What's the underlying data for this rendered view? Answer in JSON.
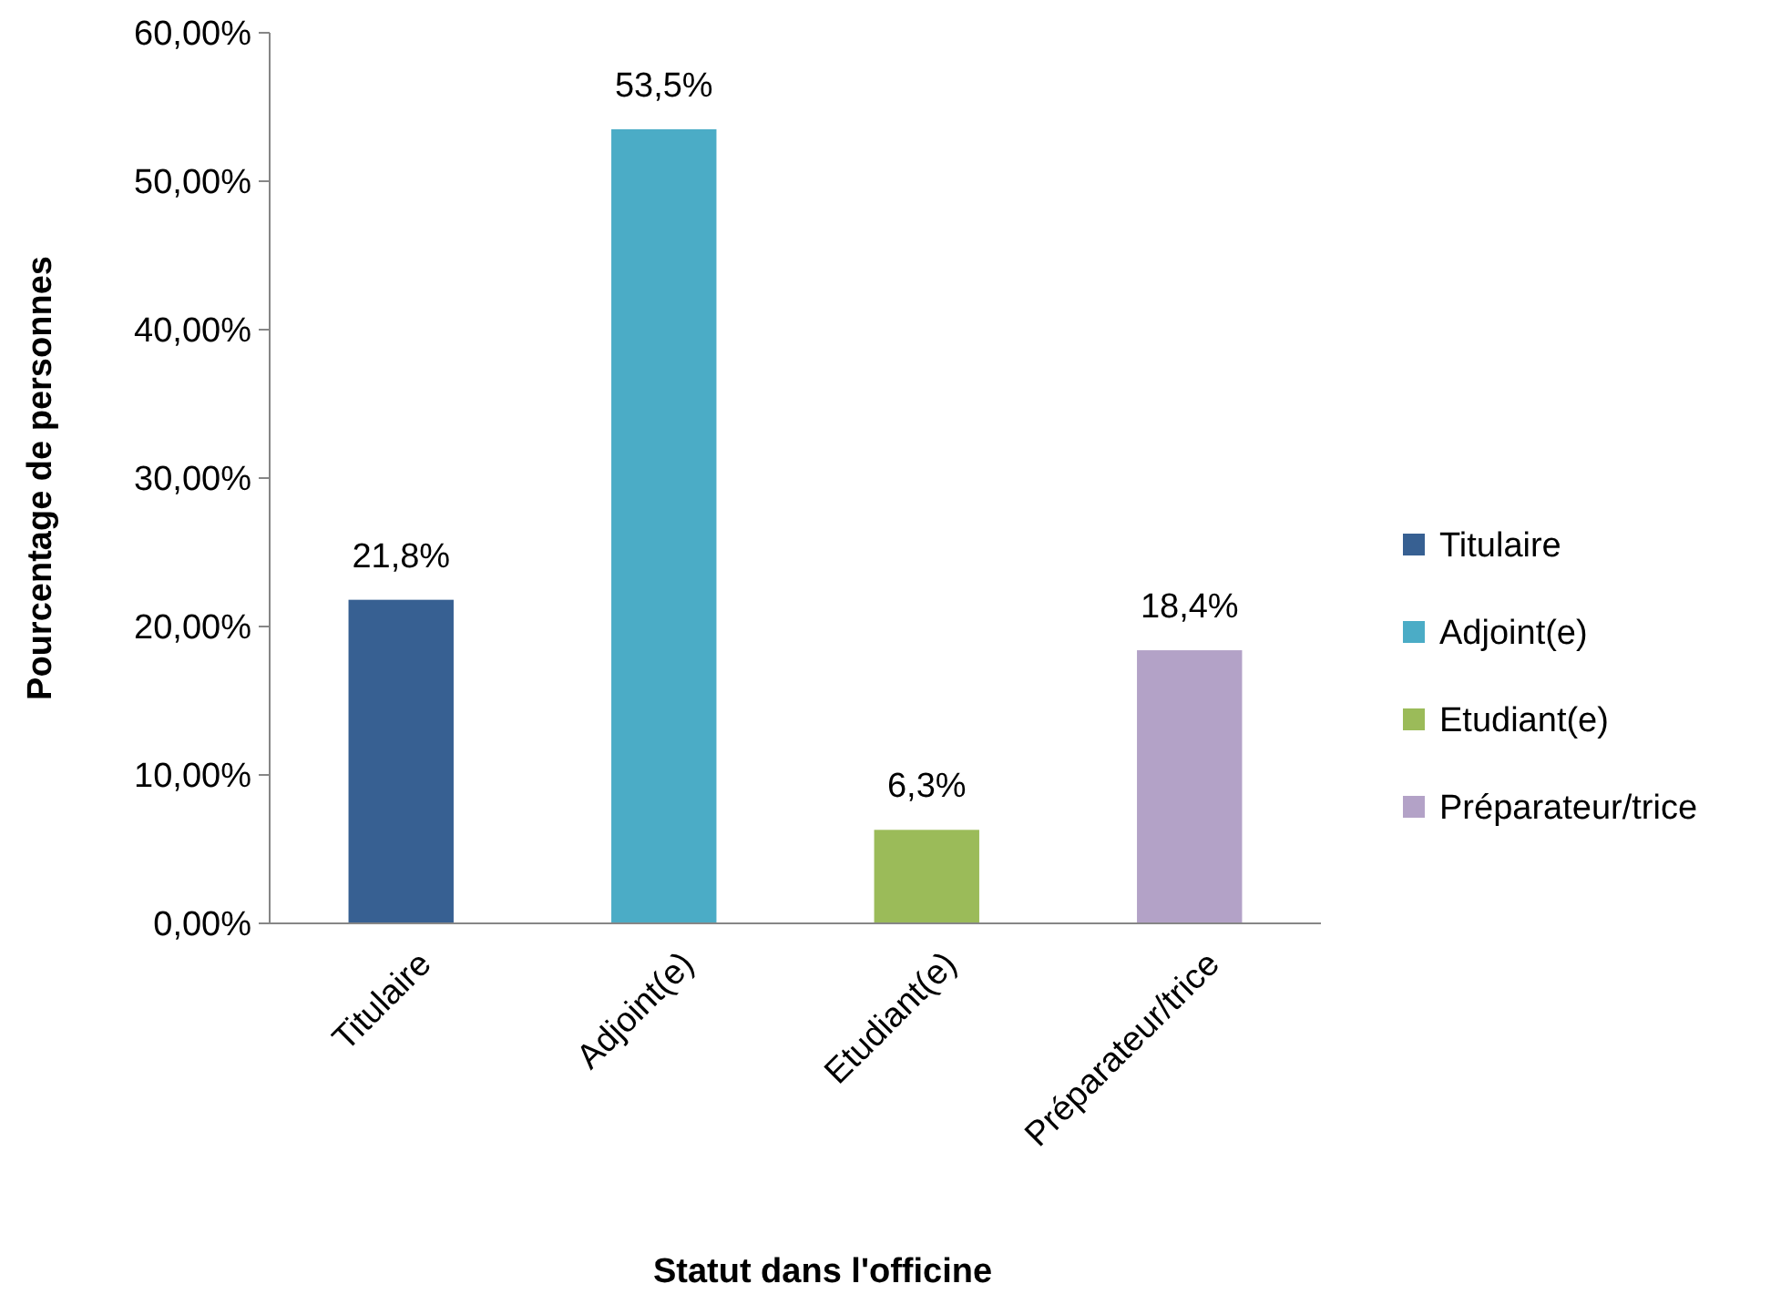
{
  "chart_data": {
    "type": "bar",
    "xlabel": "Statut dans l'officine",
    "ylabel": "Pourcentage de personnes",
    "categories": [
      "Titulaire",
      "Adjoint(e)",
      "Etudiant(e)",
      "Préparateur/trice"
    ],
    "series": [
      {
        "name": "Titulaire",
        "color": "#376092",
        "values": [
          21.8,
          null,
          null,
          null
        ],
        "value_labels": [
          "21,8%",
          null,
          null,
          null
        ]
      },
      {
        "name": "Adjoint(e)",
        "color": "#4bacc6",
        "values": [
          null,
          53.5,
          null,
          null
        ],
        "value_labels": [
          null,
          "53,5%",
          null,
          null
        ]
      },
      {
        "name": "Etudiant(e)",
        "color": "#9bbb59",
        "values": [
          null,
          null,
          6.3,
          null
        ],
        "value_labels": [
          null,
          null,
          "6,3%",
          null
        ]
      },
      {
        "name": "Préparateur/trice",
        "color": "#b3a2c7",
        "values": [
          null,
          null,
          null,
          18.4
        ],
        "value_labels": [
          null,
          null,
          null,
          "18,4%"
        ]
      }
    ],
    "ylim": [
      0,
      60
    ],
    "yticks": [
      {
        "value": 0,
        "label": "0,00%"
      },
      {
        "value": 10,
        "label": "10,00%"
      },
      {
        "value": 20,
        "label": "20,00%"
      },
      {
        "value": 30,
        "label": "30,00%"
      },
      {
        "value": 40,
        "label": "40,00%"
      },
      {
        "value": 50,
        "label": "50,00%"
      },
      {
        "value": 60,
        "label": "60,00%"
      }
    ],
    "grid": false,
    "legend": "right"
  }
}
